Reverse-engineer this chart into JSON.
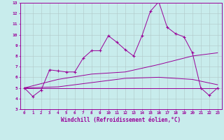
{
  "xlabel": "Windchill (Refroidissement éolien,°C)",
  "bg_color": "#c8ecec",
  "line_color": "#990099",
  "grid_color": "#b0c8c8",
  "xlim": [
    -0.5,
    23.5
  ],
  "ylim": [
    3,
    13
  ],
  "xticks": [
    0,
    1,
    2,
    3,
    4,
    5,
    6,
    7,
    8,
    9,
    10,
    11,
    12,
    13,
    14,
    15,
    16,
    17,
    18,
    19,
    20,
    21,
    22,
    23
  ],
  "yticks": [
    3,
    4,
    5,
    6,
    7,
    8,
    9,
    10,
    11,
    12,
    13
  ],
  "series1_x": [
    0,
    1,
    2,
    3,
    4,
    5,
    6,
    7,
    8,
    9,
    10,
    11,
    12,
    13,
    14,
    15,
    16,
    17,
    18,
    19,
    20,
    21,
    22,
    23
  ],
  "series1_y": [
    5.0,
    4.2,
    4.8,
    6.7,
    6.6,
    6.5,
    6.5,
    7.8,
    8.5,
    8.5,
    9.9,
    9.3,
    8.6,
    8.0,
    9.9,
    12.2,
    13.1,
    10.7,
    10.1,
    9.8,
    8.3,
    5.0,
    4.3,
    5.0
  ],
  "series2_x": [
    0,
    23
  ],
  "series2_y": [
    5.0,
    5.0
  ],
  "series3_x": [
    0,
    4,
    8,
    12,
    16,
    20,
    23
  ],
  "series3_y": [
    5.0,
    5.8,
    6.3,
    6.5,
    7.2,
    8.0,
    8.3
  ],
  "series4_x": [
    0,
    4,
    8,
    12,
    16,
    20,
    23
  ],
  "series4_y": [
    5.0,
    5.1,
    5.5,
    5.9,
    6.0,
    5.8,
    5.3
  ]
}
